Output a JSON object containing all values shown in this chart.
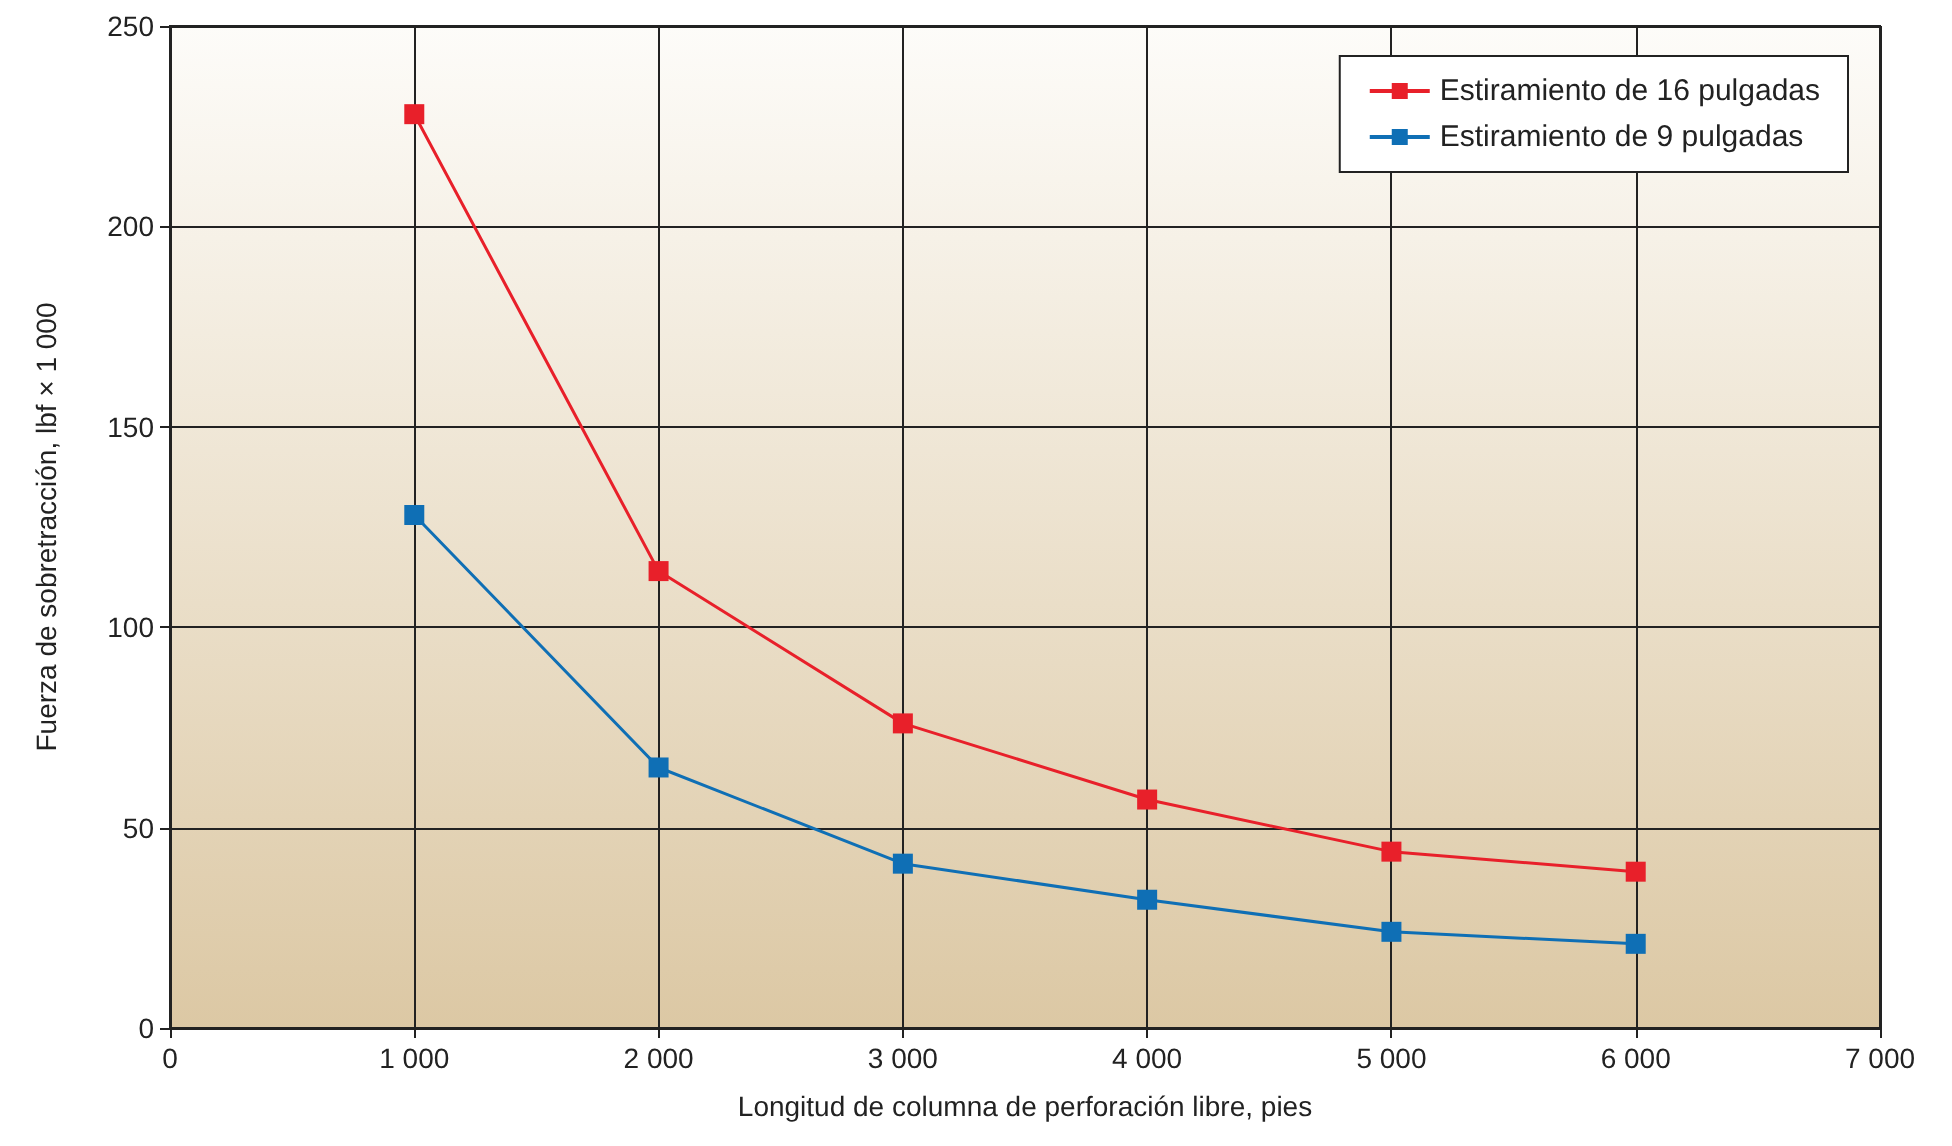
{
  "chart_data": {
    "type": "line",
    "xlabel": "Longitud de columna de perforación libre, pies",
    "ylabel": "Fuerza de sobretracción, lbf × 1 000",
    "x": [
      1000,
      2000,
      3000,
      4000,
      5000,
      6000
    ],
    "series": [
      {
        "name": "Estiramiento de 16 pulgadas",
        "color": "#e8202a",
        "values": [
          228,
          114,
          76,
          57,
          44,
          39
        ]
      },
      {
        "name": "Estiramiento de 9 pulgadas",
        "color": "#0f6fb5",
        "values": [
          128,
          65,
          41,
          32,
          24,
          21
        ]
      }
    ],
    "xlim": [
      0,
      7000
    ],
    "xticks": [
      0,
      {
        "value": 1000,
        "label": "1 000"
      },
      {
        "value": 2000,
        "label": "2 000"
      },
      {
        "value": 3000,
        "label": "3 000"
      },
      {
        "value": 4000,
        "label": "4 000"
      },
      {
        "value": 5000,
        "label": "5 000"
      },
      {
        "value": 6000,
        "label": "6 000"
      },
      {
        "value": 7000,
        "label": "7 000"
      }
    ],
    "ylim": [
      0,
      250
    ],
    "yticks": [
      0,
      50,
      100,
      150,
      200,
      250
    ],
    "grid": true,
    "legend": "top right",
    "marker": "square",
    "line_style": "solid"
  }
}
